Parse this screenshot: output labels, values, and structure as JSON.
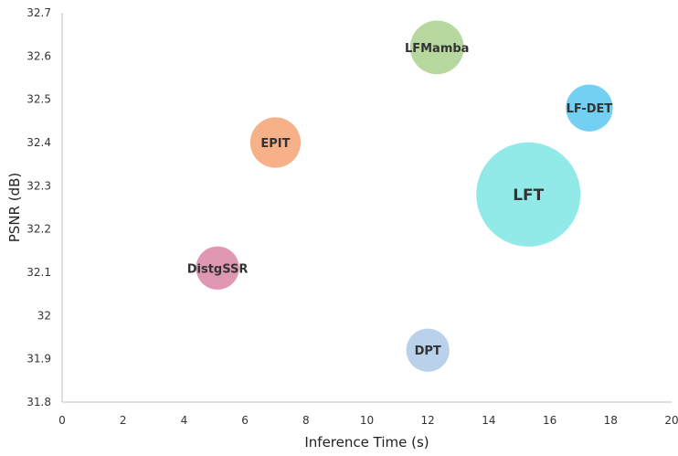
{
  "chart_data": {
    "type": "scatter",
    "subtype": "bubble",
    "title": "",
    "xlabel": "Inference Time (s)",
    "ylabel": "PSNR (dB)",
    "xlim": [
      0,
      20
    ],
    "ylim": [
      31.8,
      32.7
    ],
    "xticks": [
      "0",
      "2",
      "4",
      "6",
      "8",
      "10",
      "12",
      "14",
      "16",
      "18",
      "20"
    ],
    "yticks": [
      "31.8",
      "31.9",
      "32",
      "32.1",
      "32.2",
      "32.3",
      "32.4",
      "32.5",
      "32.6",
      "32.7"
    ],
    "grid": false,
    "legend": "none",
    "points": [
      {
        "label": "LFT",
        "x": 15.3,
        "y": 32.28,
        "size": 3.2,
        "color": "#7FE6E4"
      },
      {
        "label": "LFMamba",
        "x": 12.3,
        "y": 32.62,
        "size": 0.85,
        "color": "#A9D18E"
      },
      {
        "label": "LF-DET",
        "x": 17.3,
        "y": 32.48,
        "size": 0.65,
        "color": "#5BC8F0"
      },
      {
        "label": "EPIT",
        "x": 7.0,
        "y": 32.4,
        "size": 0.75,
        "color": "#F4A373"
      },
      {
        "label": "DistgSSR",
        "x": 5.1,
        "y": 32.11,
        "size": 0.55,
        "color": "#D985A6"
      },
      {
        "label": "DPT",
        "x": 12.0,
        "y": 31.92,
        "size": 0.55,
        "color": "#ADC9E8"
      }
    ]
  }
}
